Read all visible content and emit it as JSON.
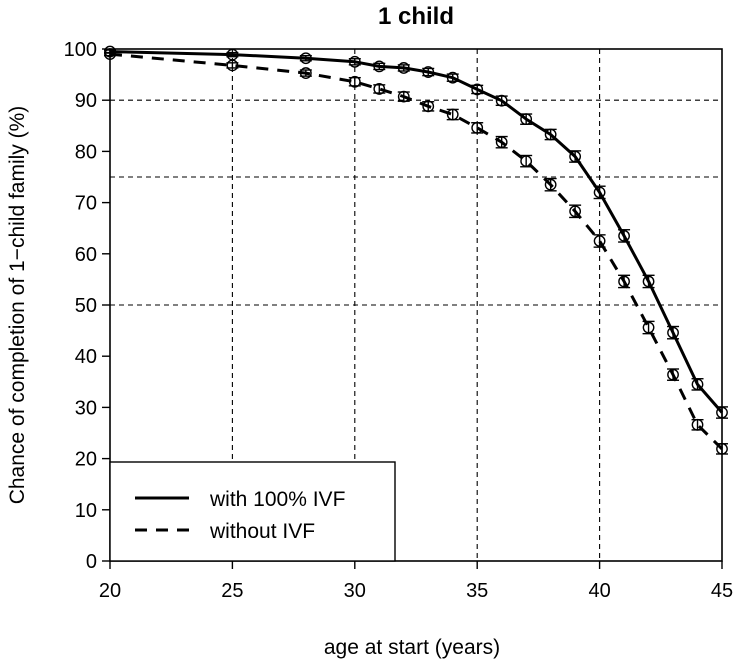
{
  "chart_data": {
    "type": "line",
    "title": "1 child",
    "xlabel": "age at start (years)",
    "ylabel": "Chance of completion of 1−child family (%)",
    "xlim": [
      20,
      45
    ],
    "ylim": [
      0,
      100
    ],
    "x_ticks": [
      20,
      25,
      30,
      35,
      40,
      45
    ],
    "y_ticks": [
      0,
      10,
      20,
      30,
      40,
      50,
      60,
      70,
      80,
      90,
      100
    ],
    "reference_lines": {
      "vertical": [
        25,
        30,
        35,
        40
      ],
      "horizontal": [
        50,
        75,
        90
      ]
    },
    "legend_position": "bottom-left",
    "series": [
      {
        "name": "with 100% IVF",
        "line_style": "solid",
        "x": [
          20,
          25,
          28,
          30,
          31,
          32,
          33,
          34,
          35,
          36,
          37,
          38,
          39,
          40,
          41,
          42,
          43,
          44,
          45
        ],
        "values": [
          99.5,
          98.9,
          98.2,
          97.5,
          96.6,
          96.3,
          95.5,
          94.4,
          92.1,
          89.9,
          86.3,
          83.3,
          79.0,
          72.0,
          63.5,
          54.6,
          44.6,
          34.5,
          29.0
        ],
        "error": [
          0.3,
          0.4,
          0.5,
          0.6,
          0.6,
          0.6,
          0.7,
          0.7,
          0.8,
          0.9,
          1.0,
          1.0,
          1.1,
          1.2,
          1.2,
          1.2,
          1.2,
          1.1,
          1.1
        ]
      },
      {
        "name": "without IVF",
        "line_style": "dashed",
        "x": [
          20,
          25,
          28,
          30,
          31,
          32,
          33,
          34,
          35,
          36,
          37,
          38,
          39,
          40,
          41,
          42,
          43,
          44,
          45
        ],
        "values": [
          99.0,
          96.8,
          95.3,
          93.6,
          92.2,
          90.7,
          88.8,
          87.2,
          84.6,
          81.8,
          78.1,
          73.5,
          68.3,
          62.5,
          54.6,
          45.6,
          36.4,
          26.6,
          21.9
        ],
        "error": [
          0.3,
          0.5,
          0.6,
          0.8,
          0.8,
          0.9,
          0.9,
          1.0,
          1.0,
          1.1,
          1.1,
          1.2,
          1.2,
          1.2,
          1.2,
          1.2,
          1.1,
          1.0,
          1.0
        ]
      }
    ]
  }
}
